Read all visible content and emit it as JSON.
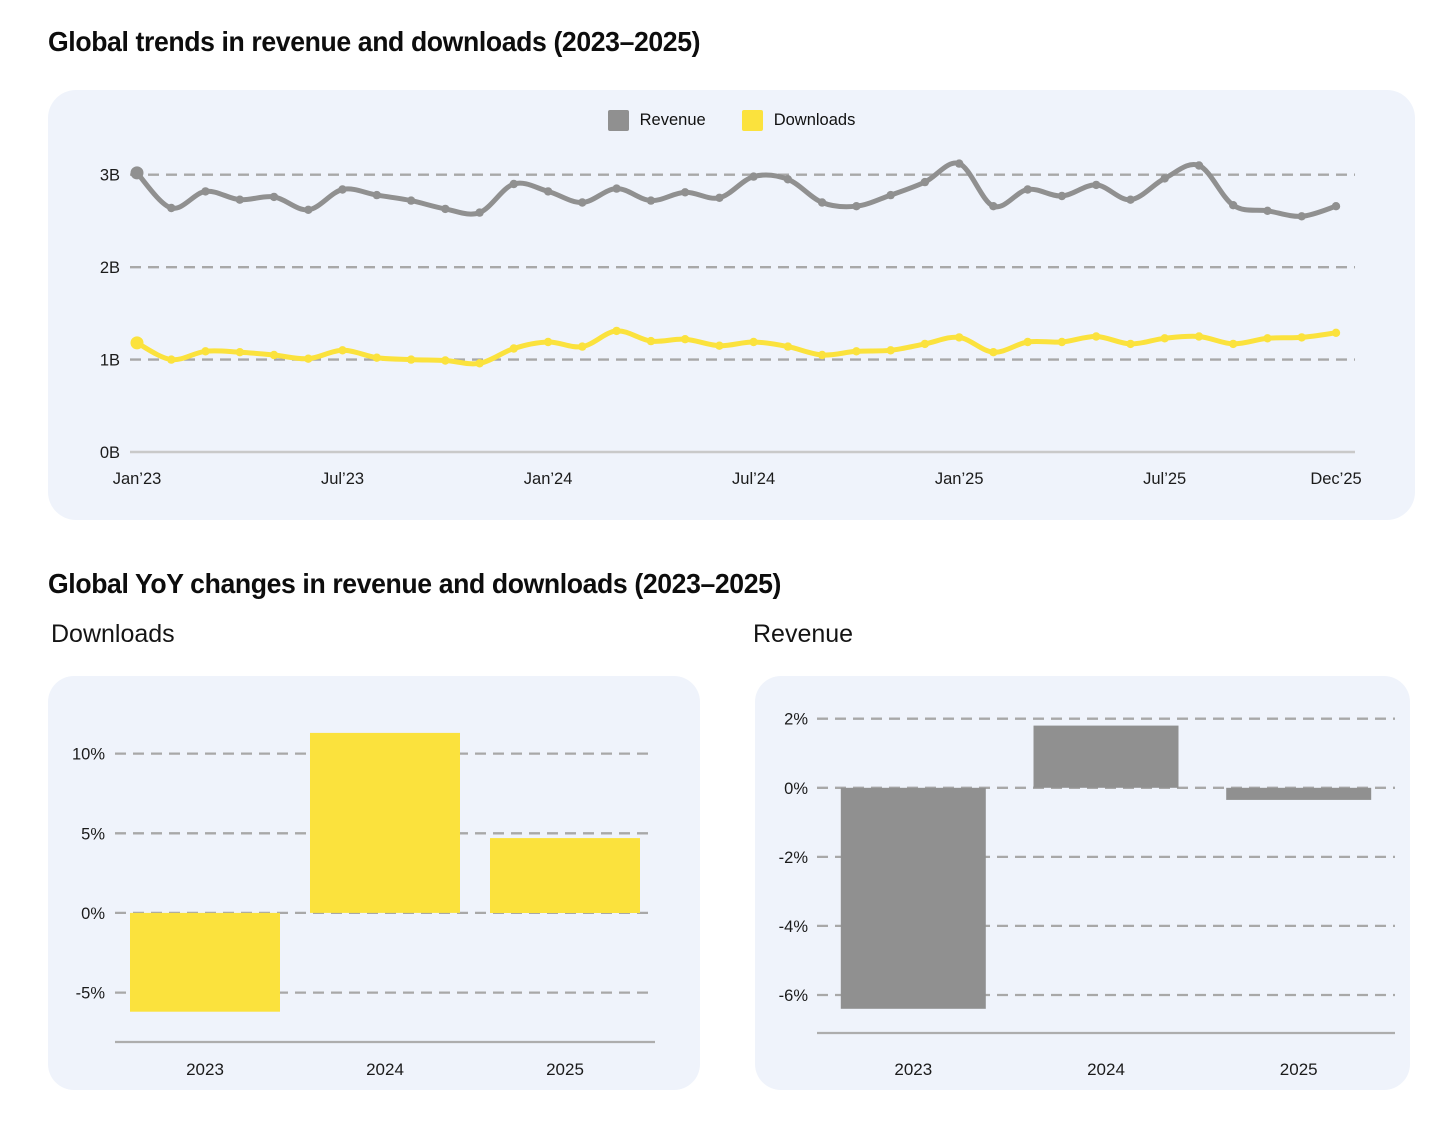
{
  "titles": {
    "trends": "Global trends in revenue and downloads (2023–2025)",
    "yoy": "Global YoY changes in revenue and downloads (2023–2025)"
  },
  "colors": {
    "revenue": "#909090",
    "downloads": "#FBE23D",
    "card_bg": "#EFF3FB",
    "grid_dash": "#A8A8A8",
    "zero_line": "#C9C9C9",
    "bar_axis": "#ADADAD",
    "tick_text": "#1B1B1B"
  },
  "legend": [
    {
      "label": "Revenue",
      "color": "#909090"
    },
    {
      "label": "Downloads",
      "color": "#FBE23D"
    }
  ],
  "chart_data": [
    {
      "id": "trend",
      "type": "line",
      "title": "Global trends in revenue and downloads (2023–2025)",
      "unit": "billions",
      "n_points": 36,
      "x_tick_labels": [
        {
          "index": 0,
          "label": "Jan’23"
        },
        {
          "index": 6,
          "label": "Jul’23"
        },
        {
          "index": 12,
          "label": "Jan’24"
        },
        {
          "index": 18,
          "label": "Jul’24"
        },
        {
          "index": 24,
          "label": "Jan’25"
        },
        {
          "index": 30,
          "label": "Jul’25"
        },
        {
          "index": 35,
          "label": "Dec’25"
        }
      ],
      "yticks": [
        {
          "value": 0,
          "label": "0B"
        },
        {
          "value": 1,
          "label": "1B"
        },
        {
          "value": 2,
          "label": "2B"
        },
        {
          "value": 3,
          "label": "3B"
        }
      ],
      "ylim": [
        0,
        3.3
      ],
      "grid": "dashed-horizontal",
      "legend_position": "top-center",
      "series": [
        {
          "name": "Revenue",
          "color": "#909090",
          "values": [
            3.02,
            2.64,
            2.82,
            2.73,
            2.76,
            2.62,
            2.84,
            2.78,
            2.72,
            2.63,
            2.59,
            2.9,
            2.82,
            2.7,
            2.85,
            2.72,
            2.81,
            2.75,
            2.98,
            2.95,
            2.7,
            2.66,
            2.78,
            2.92,
            3.12,
            2.66,
            2.84,
            2.77,
            2.89,
            2.73,
            2.96,
            3.1,
            2.67,
            2.61,
            2.55,
            2.66
          ]
        },
        {
          "name": "Downloads",
          "color": "#FBE23D",
          "values": [
            1.18,
            1.0,
            1.09,
            1.08,
            1.05,
            1.01,
            1.1,
            1.02,
            1.0,
            0.99,
            0.96,
            1.12,
            1.19,
            1.14,
            1.31,
            1.2,
            1.22,
            1.15,
            1.19,
            1.14,
            1.05,
            1.09,
            1.1,
            1.17,
            1.24,
            1.08,
            1.19,
            1.19,
            1.25,
            1.17,
            1.23,
            1.25,
            1.17,
            1.23,
            1.24,
            1.29
          ]
        }
      ]
    },
    {
      "id": "yoy-downloads",
      "type": "bar",
      "title": "Downloads",
      "categories": [
        "2023",
        "2024",
        "2025"
      ],
      "values": [
        -6.2,
        11.3,
        4.7
      ],
      "color": "#FBE23D",
      "yticks": [
        {
          "value": 10,
          "label": "10%"
        },
        {
          "value": 5,
          "label": "5%"
        },
        {
          "value": 0,
          "label": "0%"
        },
        {
          "value": -5,
          "label": "-5%"
        }
      ],
      "ylim": [
        -8.1,
        12.8
      ],
      "grid": "dashed-horizontal"
    },
    {
      "id": "yoy-revenue",
      "type": "bar",
      "title": "Revenue",
      "categories": [
        "2023",
        "2024",
        "2025"
      ],
      "values": [
        -6.4,
        1.8,
        -0.35
      ],
      "color": "#909090",
      "yticks": [
        {
          "value": 2,
          "label": "2%"
        },
        {
          "value": 0,
          "label": "0%"
        },
        {
          "value": -2,
          "label": "-2%"
        },
        {
          "value": -4,
          "label": "-4%"
        },
        {
          "value": -6,
          "label": "-6%"
        }
      ],
      "ylim": [
        -7.1,
        2.6
      ],
      "grid": "dashed-horizontal"
    }
  ]
}
